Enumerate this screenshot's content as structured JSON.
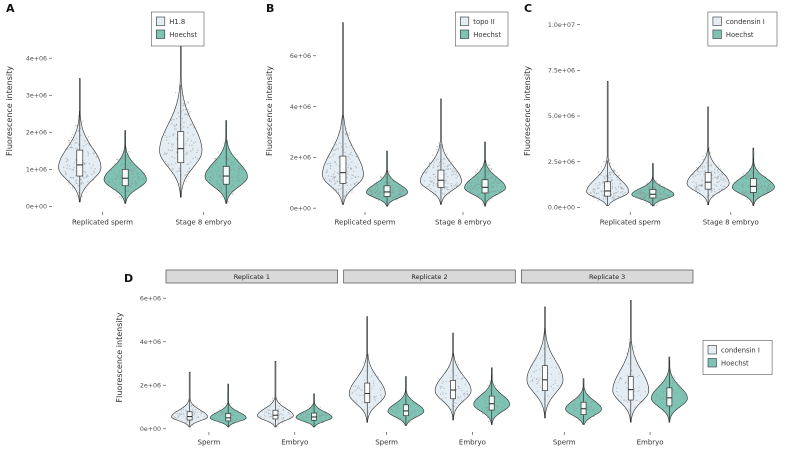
{
  "colors": {
    "light_fill": "#e4edf4",
    "teal_fill": "#7ec3b4",
    "violin_stroke": "#2a2a2a",
    "box_stroke": "#333333",
    "point": "#8f8f8f",
    "strip_bg": "#d9d9d9",
    "strip_border": "#4d4d4d",
    "text": "#333333",
    "tick_text": "#4d4d4d",
    "legend_border": "#555555"
  },
  "chart_data": [
    {
      "type": "violin",
      "panel_label": "A",
      "ylabel": "Fluorescence intensity",
      "ylim": [
        -150000,
        5300000
      ],
      "yticks": [
        {
          "v": 0,
          "label": "0e+00"
        },
        {
          "v": 1000000,
          "label": "1e+06"
        },
        {
          "v": 2000000,
          "label": "2e+06"
        },
        {
          "v": 3000000,
          "label": "3e+06"
        },
        {
          "v": 4000000,
          "label": "4e+06"
        }
      ],
      "categories": [
        "Replicated sperm",
        "Stage 8 embryo"
      ],
      "legend": [
        {
          "label": "H1.8",
          "color": "#e4edf4"
        },
        {
          "label": "Hoechst",
          "color": "#7ec3b4"
        }
      ],
      "violins": [
        {
          "cat": 0,
          "series": 0,
          "lo": 120000,
          "hi": 3450000,
          "mode": 1050000,
          "slo": 330000,
          "shi": 520000,
          "q1": 820000,
          "med": 1120000,
          "q3": 1520000,
          "n": 120
        },
        {
          "cat": 0,
          "series": 1,
          "lo": 80000,
          "hi": 2050000,
          "mode": 720000,
          "slo": 230000,
          "shi": 330000,
          "q1": 560000,
          "med": 760000,
          "q3": 1000000,
          "n": 120
        },
        {
          "cat": 1,
          "series": 0,
          "lo": 250000,
          "hi": 4450000,
          "mode": 1500000,
          "slo": 430000,
          "shi": 700000,
          "q1": 1180000,
          "med": 1560000,
          "q3": 2020000,
          "n": 130
        },
        {
          "cat": 1,
          "series": 1,
          "lo": 80000,
          "hi": 2320000,
          "mode": 800000,
          "slo": 260000,
          "shi": 380000,
          "q1": 600000,
          "med": 820000,
          "q3": 1080000,
          "n": 130
        }
      ]
    },
    {
      "type": "violin",
      "panel_label": "B",
      "ylabel": "Fluorescence intensity",
      "ylim": [
        -150000,
        7800000
      ],
      "yticks": [
        {
          "v": 0,
          "label": "0e+00"
        },
        {
          "v": 2000000,
          "label": "2e+06"
        },
        {
          "v": 4000000,
          "label": "4e+06"
        },
        {
          "v": 6000000,
          "label": "6e+06"
        }
      ],
      "categories": [
        "Replicated sperm",
        "Stage 8 embryo"
      ],
      "legend": [
        {
          "label": "topo II",
          "color": "#e4edf4"
        },
        {
          "label": "Hoechst",
          "color": "#7ec3b4"
        }
      ],
      "violins": [
        {
          "cat": 0,
          "series": 0,
          "lo": 150000,
          "hi": 7300000,
          "mode": 1300000,
          "slo": 430000,
          "shi": 900000,
          "q1": 980000,
          "med": 1400000,
          "q3": 2050000,
          "n": 130
        },
        {
          "cat": 0,
          "series": 1,
          "lo": 80000,
          "hi": 2250000,
          "mode": 620000,
          "slo": 200000,
          "shi": 320000,
          "q1": 460000,
          "med": 640000,
          "q3": 880000,
          "n": 130
        },
        {
          "cat": 1,
          "series": 0,
          "lo": 150000,
          "hi": 4300000,
          "mode": 1050000,
          "slo": 320000,
          "shi": 600000,
          "q1": 820000,
          "med": 1100000,
          "q3": 1500000,
          "n": 120
        },
        {
          "cat": 1,
          "series": 1,
          "lo": 80000,
          "hi": 2600000,
          "mode": 800000,
          "slo": 250000,
          "shi": 400000,
          "q1": 600000,
          "med": 820000,
          "q3": 1120000,
          "n": 120
        }
      ]
    },
    {
      "type": "violin",
      "panel_label": "C",
      "ylabel": "Fluorescence intensity",
      "ylim": [
        -250000,
        10800000
      ],
      "yticks": [
        {
          "v": 0,
          "label": "0.0e+00"
        },
        {
          "v": 2500000,
          "label": "2.5e+06"
        },
        {
          "v": 5000000,
          "label": "5.0e+06"
        },
        {
          "v": 7500000,
          "label": "7.5e+06"
        },
        {
          "v": 10000000,
          "label": "1.0e+07"
        }
      ],
      "categories": [
        "Replicated sperm",
        "Stage 8 embryo"
      ],
      "legend": [
        {
          "label": "condensin I",
          "color": "#e4edf4"
        },
        {
          "label": "Hoechst",
          "color": "#7ec3b4"
        }
      ],
      "violins": [
        {
          "cat": 0,
          "series": 0,
          "lo": 100000,
          "hi": 6900000,
          "mode": 850000,
          "slo": 300000,
          "shi": 680000,
          "q1": 620000,
          "med": 900000,
          "q3": 1400000,
          "n": 130
        },
        {
          "cat": 0,
          "series": 1,
          "lo": 80000,
          "hi": 2400000,
          "mode": 700000,
          "slo": 230000,
          "shi": 340000,
          "q1": 520000,
          "med": 720000,
          "q3": 980000,
          "n": 130
        },
        {
          "cat": 1,
          "series": 0,
          "lo": 150000,
          "hi": 5500000,
          "mode": 1300000,
          "slo": 400000,
          "shi": 700000,
          "q1": 1000000,
          "med": 1380000,
          "q3": 1900000,
          "n": 120
        },
        {
          "cat": 1,
          "series": 1,
          "lo": 100000,
          "hi": 3250000,
          "mode": 1100000,
          "slo": 350000,
          "shi": 500000,
          "q1": 820000,
          "med": 1150000,
          "q3": 1580000,
          "n": 120
        }
      ]
    },
    {
      "type": "violin",
      "panel_label": "D",
      "ylabel": "Fluorescence intensity",
      "ylim": [
        -150000,
        6700000
      ],
      "yticks": [
        {
          "v": 0,
          "label": "0e+00"
        },
        {
          "v": 2000000,
          "label": "2e+06"
        },
        {
          "v": 4000000,
          "label": "4e+06"
        },
        {
          "v": 6000000,
          "label": "6e+06"
        }
      ],
      "facets": [
        "Replicate 1",
        "Replicate 2",
        "Replicate 3"
      ],
      "categories": [
        "Sperm",
        "Embryo"
      ],
      "legend": [
        {
          "label": "condensin I",
          "color": "#e4edf4"
        },
        {
          "label": "Hoechst",
          "color": "#7ec3b4"
        }
      ],
      "violins": [
        {
          "facet": 0,
          "cat": 0,
          "series": 0,
          "lo": 80000,
          "hi": 2600000,
          "mode": 550000,
          "slo": 180000,
          "shi": 300000,
          "q1": 400000,
          "med": 560000,
          "q3": 780000,
          "n": 60
        },
        {
          "facet": 0,
          "cat": 0,
          "series": 1,
          "lo": 80000,
          "hi": 2050000,
          "mode": 500000,
          "slo": 160000,
          "shi": 260000,
          "q1": 360000,
          "med": 500000,
          "q3": 700000,
          "n": 60
        },
        {
          "facet": 0,
          "cat": 1,
          "series": 0,
          "lo": 80000,
          "hi": 3100000,
          "mode": 600000,
          "slo": 200000,
          "shi": 320000,
          "q1": 450000,
          "med": 620000,
          "q3": 850000,
          "n": 60
        },
        {
          "facet": 0,
          "cat": 1,
          "series": 1,
          "lo": 80000,
          "hi": 1600000,
          "mode": 520000,
          "slo": 170000,
          "shi": 250000,
          "q1": 390000,
          "med": 540000,
          "q3": 720000,
          "n": 60
        },
        {
          "facet": 1,
          "cat": 0,
          "series": 0,
          "lo": 300000,
          "hi": 5150000,
          "mode": 1600000,
          "slo": 450000,
          "shi": 700000,
          "q1": 1200000,
          "med": 1620000,
          "q3": 2100000,
          "n": 60
        },
        {
          "facet": 1,
          "cat": 0,
          "series": 1,
          "lo": 150000,
          "hi": 2400000,
          "mode": 800000,
          "slo": 250000,
          "shi": 350000,
          "q1": 600000,
          "med": 820000,
          "q3": 1100000,
          "n": 60
        },
        {
          "facet": 1,
          "cat": 1,
          "series": 0,
          "lo": 400000,
          "hi": 4400000,
          "mode": 1750000,
          "slo": 450000,
          "shi": 650000,
          "q1": 1380000,
          "med": 1780000,
          "q3": 2220000,
          "n": 60
        },
        {
          "facet": 1,
          "cat": 1,
          "series": 1,
          "lo": 200000,
          "hi": 2800000,
          "mode": 1120000,
          "slo": 320000,
          "shi": 420000,
          "q1": 860000,
          "med": 1150000,
          "q3": 1500000,
          "n": 60
        },
        {
          "facet": 2,
          "cat": 0,
          "series": 0,
          "lo": 500000,
          "hi": 5600000,
          "mode": 2250000,
          "slo": 600000,
          "shi": 850000,
          "q1": 1750000,
          "med": 2250000,
          "q3": 2900000,
          "n": 60
        },
        {
          "facet": 2,
          "cat": 0,
          "series": 1,
          "lo": 200000,
          "hi": 2300000,
          "mode": 900000,
          "slo": 280000,
          "shi": 380000,
          "q1": 650000,
          "med": 920000,
          "q3": 1220000,
          "n": 60
        },
        {
          "facet": 2,
          "cat": 1,
          "series": 0,
          "lo": 300000,
          "hi": 5900000,
          "mode": 1750000,
          "slo": 500000,
          "shi": 900000,
          "q1": 1320000,
          "med": 1800000,
          "q3": 2400000,
          "n": 60
        },
        {
          "facet": 2,
          "cat": 1,
          "series": 1,
          "lo": 300000,
          "hi": 3300000,
          "mode": 1400000,
          "slo": 380000,
          "shi": 520000,
          "q1": 1050000,
          "med": 1420000,
          "q3": 1880000,
          "n": 60
        }
      ]
    }
  ]
}
